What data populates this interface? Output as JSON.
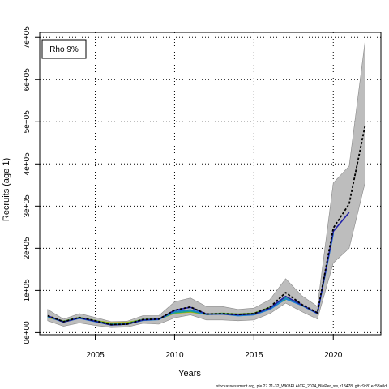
{
  "chart_data": {
    "type": "line",
    "xlabel": "Years",
    "ylabel": "Recruits (age 1)",
    "xlim": [
      2001.5,
      2023.0
    ],
    "ylim": [
      -5000,
      712000
    ],
    "xticks": [
      2005,
      2010,
      2015,
      2020
    ],
    "yticks": [
      0,
      100000,
      200000,
      300000,
      400000,
      500000,
      600000,
      700000
    ],
    "ytick_labels": [
      "0e+00",
      "1e+05",
      "2e+05",
      "3e+05",
      "4e+05",
      "5e+05",
      "6e+05",
      "7e+05"
    ],
    "grid": true,
    "grid_style": "dotted",
    "legend_text": "Rho 9%",
    "legend_position": "top-left",
    "footer": "stockassessment.org, ple.27.21-32_WKBPLAICE_2024_BloPer_sw, r18478, git:c9c81ec53a0d",
    "confidence_band": {
      "x": [
        2002,
        2003,
        2004,
        2005,
        2006,
        2007,
        2008,
        2009,
        2010,
        2011,
        2012,
        2013,
        2014,
        2015,
        2016,
        2017,
        2018,
        2019,
        2020,
        2021,
        2022
      ],
      "upper": [
        55000,
        32000,
        45000,
        36000,
        26000,
        27000,
        40000,
        40000,
        73000,
        82000,
        62000,
        62000,
        55000,
        58000,
        78000,
        128000,
        88000,
        62000,
        355000,
        395000,
        690000
      ],
      "lower": [
        28000,
        15000,
        23000,
        17000,
        12000,
        13000,
        22000,
        20000,
        35000,
        42000,
        30000,
        30000,
        28000,
        30000,
        45000,
        70000,
        50000,
        32000,
        165000,
        200000,
        355000
      ]
    },
    "series": [
      {
        "color": "#000000",
        "dashed": true,
        "values": [
          [
            2002,
            40000
          ],
          [
            2003,
            26000
          ],
          [
            2004,
            36000
          ],
          [
            2005,
            28000
          ],
          [
            2006,
            19000
          ],
          [
            2007,
            20000
          ],
          [
            2008,
            31000
          ],
          [
            2009,
            32000
          ],
          [
            2010,
            53000
          ],
          [
            2011,
            61000
          ],
          [
            2012,
            44000
          ],
          [
            2013,
            45000
          ],
          [
            2014,
            43000
          ],
          [
            2015,
            45000
          ],
          [
            2016,
            60000
          ],
          [
            2017,
            95000
          ],
          [
            2018,
            67000
          ],
          [
            2019,
            47000
          ],
          [
            2020,
            248000
          ],
          [
            2021,
            305000
          ],
          [
            2022,
            490000
          ]
        ]
      },
      {
        "color": "#2222aa",
        "values": [
          [
            2002,
            40000
          ],
          [
            2003,
            25000
          ],
          [
            2004,
            35000
          ],
          [
            2005,
            27000
          ],
          [
            2006,
            18000
          ],
          [
            2007,
            20000
          ],
          [
            2008,
            30000
          ],
          [
            2009,
            32000
          ],
          [
            2010,
            53000
          ],
          [
            2011,
            60000
          ],
          [
            2012,
            44000
          ],
          [
            2013,
            44000
          ],
          [
            2014,
            42000
          ],
          [
            2015,
            44000
          ],
          [
            2016,
            58000
          ],
          [
            2017,
            86000
          ],
          [
            2018,
            66000
          ],
          [
            2019,
            46000
          ],
          [
            2020,
            240000
          ],
          [
            2021,
            285000
          ]
        ]
      },
      {
        "color": "#1a7fd4",
        "values": [
          [
            2002,
            38000
          ],
          [
            2003,
            25000
          ],
          [
            2004,
            34000
          ],
          [
            2005,
            26000
          ],
          [
            2006,
            18000
          ],
          [
            2007,
            20000
          ],
          [
            2008,
            29000
          ],
          [
            2009,
            31000
          ],
          [
            2010,
            50000
          ],
          [
            2011,
            54000
          ],
          [
            2012,
            43000
          ],
          [
            2013,
            44000
          ],
          [
            2014,
            40000
          ],
          [
            2015,
            42000
          ],
          [
            2016,
            55000
          ],
          [
            2017,
            80000
          ],
          [
            2018,
            65000
          ],
          [
            2019,
            45000
          ],
          [
            2020,
            235000
          ]
        ]
      },
      {
        "color": "#1aa58a",
        "values": [
          [
            2002,
            38000
          ],
          [
            2003,
            26000
          ],
          [
            2004,
            35000
          ],
          [
            2005,
            27000
          ],
          [
            2006,
            20000
          ],
          [
            2007,
            21000
          ],
          [
            2008,
            30000
          ],
          [
            2009,
            32000
          ],
          [
            2010,
            47000
          ],
          [
            2011,
            51000
          ],
          [
            2012,
            43000
          ],
          [
            2013,
            45000
          ],
          [
            2014,
            42000
          ],
          [
            2015,
            44000
          ],
          [
            2016,
            57000
          ],
          [
            2017,
            82000
          ],
          [
            2018,
            65000
          ],
          [
            2019,
            46000
          ]
        ]
      },
      {
        "color": "#6ab42a",
        "values": [
          [
            2002,
            37000
          ],
          [
            2003,
            27000
          ],
          [
            2004,
            36000
          ],
          [
            2005,
            28000
          ],
          [
            2006,
            22000
          ],
          [
            2007,
            23000
          ],
          [
            2008,
            31000
          ],
          [
            2009,
            33000
          ],
          [
            2010,
            47000
          ],
          [
            2011,
            50000
          ],
          [
            2012,
            44000
          ],
          [
            2013,
            46000
          ],
          [
            2014,
            44000
          ],
          [
            2015,
            46000
          ],
          [
            2016,
            60000
          ],
          [
            2017,
            78000
          ]
        ]
      },
      {
        "color": "#c8b400",
        "values": [
          [
            2002,
            36000
          ],
          [
            2003,
            27000
          ],
          [
            2004,
            35000
          ],
          [
            2005,
            28000
          ],
          [
            2006,
            23000
          ],
          [
            2007,
            24000
          ],
          [
            2008,
            30000
          ],
          [
            2009,
            32000
          ],
          [
            2010,
            46000
          ],
          [
            2011,
            49000
          ],
          [
            2012,
            43000
          ],
          [
            2013,
            45000
          ],
          [
            2014,
            43000
          ],
          [
            2015,
            45000
          ],
          [
            2016,
            58000
          ]
        ]
      }
    ]
  }
}
